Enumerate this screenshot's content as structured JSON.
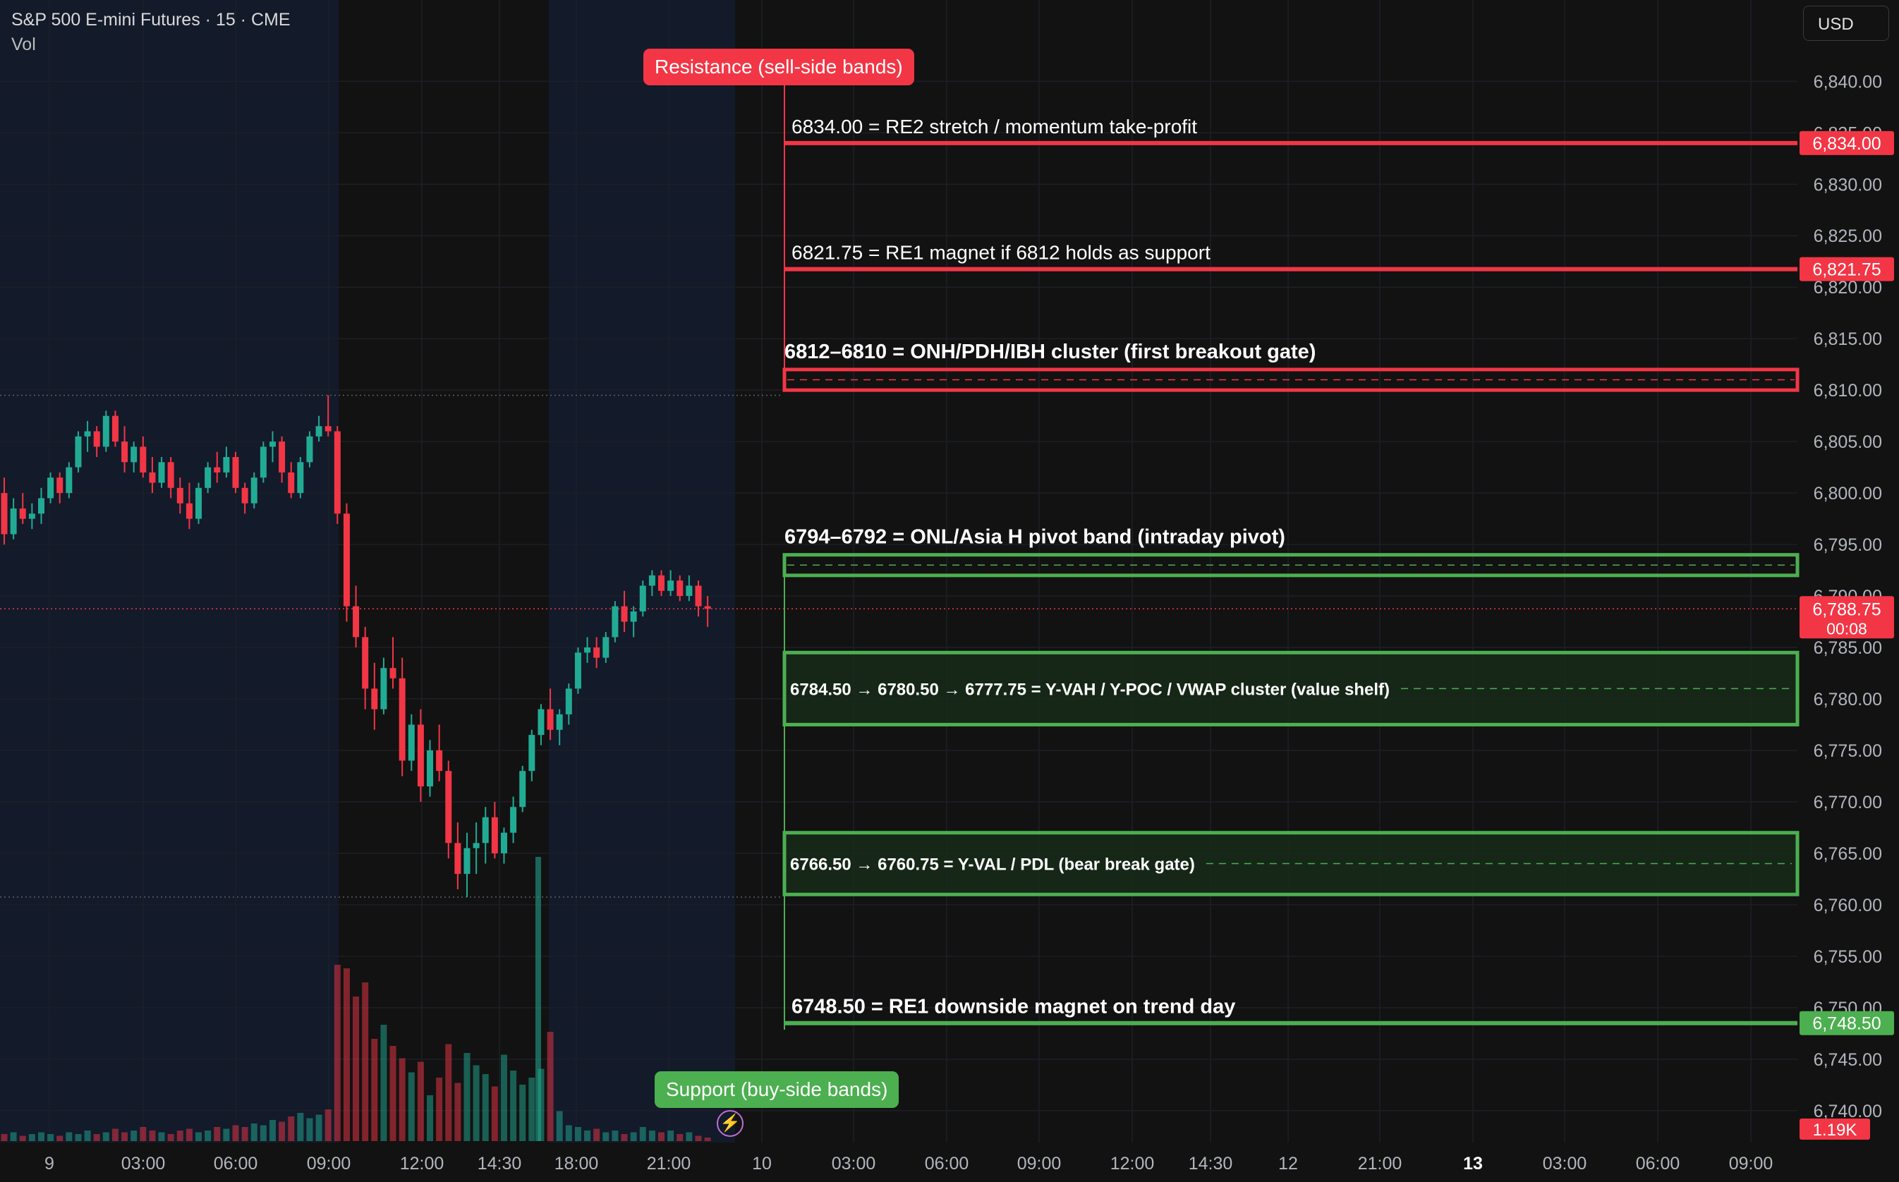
{
  "header": {
    "symbol_title": "S&P 500 E-mini Futures · 15 · CME",
    "volume_label": "Vol"
  },
  "currency_button": "USD",
  "colors": {
    "background": "#121212",
    "session_shade": "#131a2a",
    "bull": "#22ab94",
    "bear": "#f23645",
    "resistance": "#f23645",
    "support": "#4caf50",
    "resistance_tag": "#f23645",
    "support_tag": "#4caf50"
  },
  "tags": {
    "resistance": "Resistance (sell-side bands)",
    "support": "Support (buy-side bands)"
  },
  "chart_data": {
    "type": "candlestick",
    "symbol": "ES",
    "timeframe": "15",
    "ylim": [
      6737.5,
      6842.5
    ],
    "y_ticks": [
      "6,840.00",
      "6,835.00",
      "6,830.00",
      "6,825.00",
      "6,820.00",
      "6,815.00",
      "6,810.00",
      "6,805.00",
      "6,800.00",
      "6,795.00",
      "6,790.00",
      "6,785.00",
      "6,780.00",
      "6,775.00",
      "6,770.00",
      "6,765.00",
      "6,760.00",
      "6,755.00",
      "6,750.00",
      "6,745.00",
      "6,740.00"
    ],
    "x_ticks": [
      {
        "label": "9",
        "bold": false
      },
      {
        "label": "03:00",
        "bold": false
      },
      {
        "label": "06:00",
        "bold": false
      },
      {
        "label": "09:00",
        "bold": false
      },
      {
        "label": "12:00",
        "bold": false
      },
      {
        "label": "14:30",
        "bold": false
      },
      {
        "label": "18:00",
        "bold": false
      },
      {
        "label": "21:00",
        "bold": false
      },
      {
        "label": "10",
        "bold": false
      },
      {
        "label": "03:00",
        "bold": false
      },
      {
        "label": "06:00",
        "bold": false
      },
      {
        "label": "09:00",
        "bold": false
      },
      {
        "label": "12:00",
        "bold": false
      },
      {
        "label": "14:30",
        "bold": false
      },
      {
        "label": "12",
        "bold": false
      },
      {
        "label": "21:00",
        "bold": false
      },
      {
        "label": "13",
        "bold": true
      },
      {
        "label": "03:00",
        "bold": false
      },
      {
        "label": "06:00",
        "bold": false
      },
      {
        "label": "09:00",
        "bold": false
      }
    ],
    "last_price": {
      "value": 6788.75,
      "label": "6,788.75",
      "countdown": "00:08"
    },
    "volume_last": "1.19K",
    "session_high": 6809.5,
    "session_low": 6760.75,
    "levels": [
      {
        "kind": "line",
        "side": "resistance",
        "price": 6834.0,
        "label": "6834.00 = RE2 stretch / momentum take-profit",
        "price_label": "6,834.00",
        "bold": false
      },
      {
        "kind": "line",
        "side": "resistance",
        "price": 6821.75,
        "label": "6821.75 = RE1 magnet if 6812 holds as support",
        "price_label": "6,821.75",
        "bold": false
      },
      {
        "kind": "band",
        "side": "resistance",
        "top": 6812.0,
        "bottom": 6810.0,
        "label": "6812–6810 = ONH/PDH/IBH cluster (first breakout gate)",
        "label_pos": "above",
        "bold": true
      },
      {
        "kind": "band",
        "side": "support",
        "top": 6794.0,
        "bottom": 6792.0,
        "label": "6794–6792 = ONL/Asia H pivot band (intraday pivot)",
        "label_pos": "above",
        "bold": true
      },
      {
        "kind": "band",
        "side": "support",
        "top": 6784.5,
        "bottom": 6777.5,
        "label": "6784.50 → 6780.50 → 6777.75 = Y-VAH / Y-POC / VWAP cluster (value shelf)",
        "label_pos": "inside",
        "bold": true
      },
      {
        "kind": "band",
        "side": "support",
        "top": 6767.0,
        "bottom": 6761.0,
        "label": "6766.50 → 6760.75 = Y-VAL / PDL (bear break gate)",
        "label_pos": "inside",
        "bold": true
      },
      {
        "kind": "line",
        "side": "support",
        "price": 6748.5,
        "label": "6748.50 = RE1 downside magnet on trend day",
        "price_label": "6,748.50",
        "bold": true
      }
    ],
    "candles": [
      [
        6800.0,
        6801.5,
        6795.0,
        6796.0
      ],
      [
        6796.0,
        6799.5,
        6795.5,
        6798.5
      ],
      [
        6798.5,
        6800.0,
        6797.0,
        6797.5
      ],
      [
        6797.5,
        6799.0,
        6796.5,
        6798.0
      ],
      [
        6798.0,
        6800.5,
        6797.0,
        6799.5
      ],
      [
        6799.5,
        6802.0,
        6799.0,
        6801.5
      ],
      [
        6801.5,
        6802.0,
        6799.0,
        6800.0
      ],
      [
        6800.0,
        6803.0,
        6799.5,
        6802.5
      ],
      [
        6802.5,
        6806.0,
        6802.0,
        6805.5
      ],
      [
        6805.5,
        6807.0,
        6804.0,
        6806.0
      ],
      [
        6806.0,
        6806.5,
        6803.5,
        6804.5
      ],
      [
        6804.5,
        6808.0,
        6804.0,
        6807.5
      ],
      [
        6807.5,
        6808.0,
        6804.5,
        6805.0
      ],
      [
        6805.0,
        6806.5,
        6802.0,
        6803.0
      ],
      [
        6803.0,
        6805.0,
        6802.0,
        6804.5
      ],
      [
        6804.5,
        6805.5,
        6801.5,
        6802.0
      ],
      [
        6802.0,
        6803.5,
        6800.0,
        6801.0
      ],
      [
        6801.0,
        6803.5,
        6800.5,
        6803.0
      ],
      [
        6803.0,
        6803.5,
        6799.5,
        6800.5
      ],
      [
        6800.5,
        6801.5,
        6798.0,
        6799.0
      ],
      [
        6799.0,
        6801.0,
        6796.5,
        6797.5
      ],
      [
        6797.5,
        6801.0,
        6797.0,
        6800.5
      ],
      [
        6800.5,
        6803.0,
        6800.0,
        6802.5
      ],
      [
        6802.5,
        6804.0,
        6801.0,
        6802.0
      ],
      [
        6802.0,
        6804.5,
        6801.5,
        6803.5
      ],
      [
        6803.5,
        6804.0,
        6800.0,
        6800.5
      ],
      [
        6800.5,
        6801.0,
        6798.0,
        6799.0
      ],
      [
        6799.0,
        6802.0,
        6798.5,
        6801.5
      ],
      [
        6801.5,
        6805.0,
        6801.0,
        6804.5
      ],
      [
        6804.5,
        6806.0,
        6803.0,
        6805.0
      ],
      [
        6805.0,
        6805.5,
        6801.0,
        6802.0
      ],
      [
        6802.0,
        6803.0,
        6799.5,
        6800.0
      ],
      [
        6800.0,
        6803.5,
        6799.5,
        6803.0
      ],
      [
        6803.0,
        6806.0,
        6802.5,
        6805.5
      ],
      [
        6805.5,
        6807.5,
        6805.0,
        6806.5
      ],
      [
        6806.5,
        6809.5,
        6805.5,
        6806.0
      ],
      [
        6806.0,
        6806.5,
        6797.0,
        6798.0
      ],
      [
        6798.0,
        6799.0,
        6787.5,
        6789.0
      ],
      [
        6789.0,
        6791.0,
        6785.0,
        6786.0
      ],
      [
        6786.0,
        6787.0,
        6779.0,
        6781.0
      ],
      [
        6781.0,
        6783.5,
        6777.0,
        6779.0
      ],
      [
        6779.0,
        6784.0,
        6778.5,
        6783.0
      ],
      [
        6783.0,
        6786.0,
        6781.0,
        6782.0
      ],
      [
        6782.0,
        6784.0,
        6772.5,
        6774.0
      ],
      [
        6774.0,
        6778.5,
        6773.0,
        6777.5
      ],
      [
        6777.5,
        6779.0,
        6770.0,
        6771.5
      ],
      [
        6771.5,
        6776.0,
        6770.5,
        6775.0
      ],
      [
        6775.0,
        6777.5,
        6772.0,
        6773.0
      ],
      [
        6773.0,
        6774.0,
        6764.5,
        6766.0
      ],
      [
        6766.0,
        6768.0,
        6761.5,
        6763.0
      ],
      [
        6763.0,
        6767.0,
        6760.75,
        6765.5
      ],
      [
        6765.5,
        6768.0,
        6763.0,
        6766.0
      ],
      [
        6766.0,
        6769.5,
        6764.0,
        6768.5
      ],
      [
        6768.5,
        6770.0,
        6764.5,
        6765.0
      ],
      [
        6765.0,
        6767.5,
        6764.0,
        6767.0
      ],
      [
        6767.0,
        6770.5,
        6766.0,
        6769.5
      ],
      [
        6769.5,
        6773.5,
        6769.0,
        6773.0
      ],
      [
        6773.0,
        6777.0,
        6772.0,
        6776.5
      ],
      [
        6776.5,
        6779.5,
        6775.5,
        6779.0
      ],
      [
        6779.0,
        6781.0,
        6776.0,
        6777.0
      ],
      [
        6777.0,
        6779.0,
        6775.5,
        6778.5
      ],
      [
        6778.5,
        6781.5,
        6777.5,
        6781.0
      ],
      [
        6781.0,
        6785.0,
        6780.5,
        6784.5
      ],
      [
        6784.5,
        6786.0,
        6783.5,
        6785.0
      ],
      [
        6785.0,
        6786.0,
        6783.0,
        6784.0
      ],
      [
        6784.0,
        6786.5,
        6783.5,
        6786.0
      ],
      [
        6786.0,
        6789.5,
        6785.5,
        6789.0
      ],
      [
        6789.0,
        6790.5,
        6786.5,
        6787.5
      ],
      [
        6787.5,
        6789.0,
        6786.0,
        6788.5
      ],
      [
        6788.5,
        6791.5,
        6788.0,
        6791.0
      ],
      [
        6791.0,
        6792.5,
        6790.0,
        6792.0
      ],
      [
        6792.0,
        6792.5,
        6790.0,
        6790.5
      ],
      [
        6790.5,
        6792.5,
        6790.0,
        6791.5
      ],
      [
        6791.5,
        6792.0,
        6789.5,
        6790.0
      ],
      [
        6790.0,
        6792.0,
        6789.5,
        6791.0
      ],
      [
        6791.0,
        6791.5,
        6788.0,
        6789.0
      ],
      [
        6789.0,
        6790.0,
        6787.0,
        6788.75
      ]
    ],
    "volumes": [
      4,
      5,
      3,
      4,
      5,
      4,
      3,
      5,
      4,
      6,
      4,
      5,
      7,
      5,
      6,
      8,
      6,
      5,
      4,
      6,
      7,
      5,
      6,
      8,
      7,
      9,
      8,
      10,
      9,
      12,
      11,
      14,
      16,
      13,
      15,
      18,
      100,
      98,
      82,
      90,
      58,
      66,
      54,
      47,
      39,
      45,
      26,
      36,
      55,
      33,
      50,
      43,
      38,
      31,
      49,
      40,
      32,
      36,
      41,
      62,
      17,
      9,
      8,
      6,
      7,
      5,
      6,
      4,
      5,
      8,
      6,
      5,
      6,
      4,
      5,
      3,
      2
    ]
  }
}
